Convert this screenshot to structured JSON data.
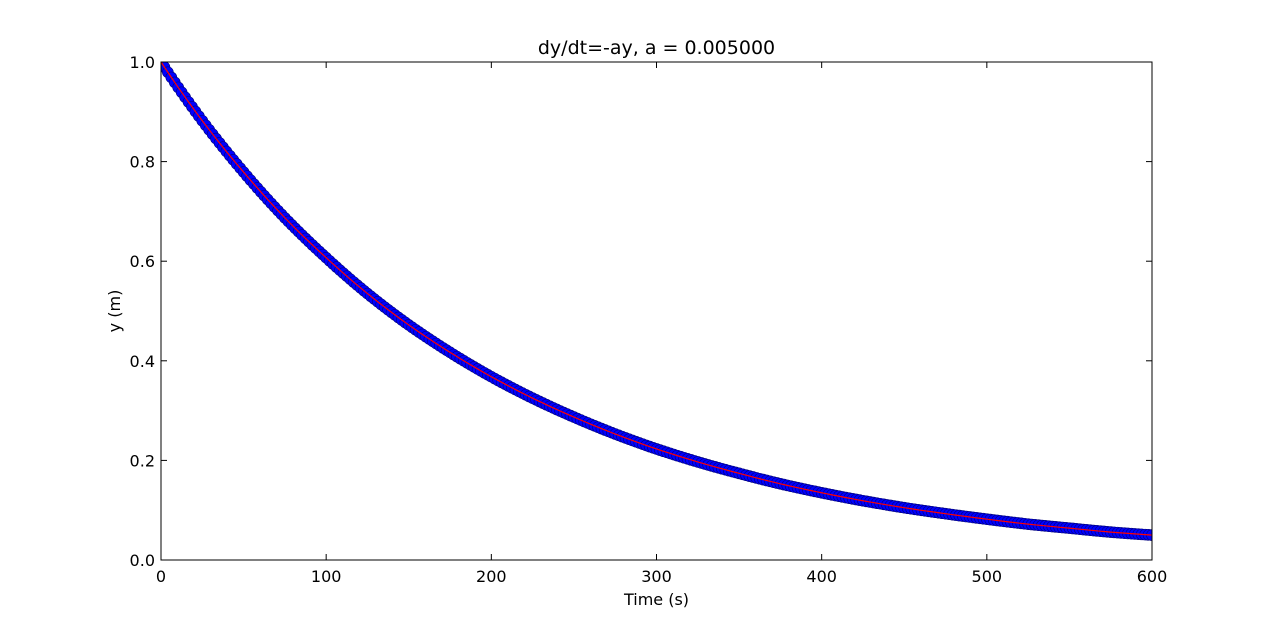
{
  "chart_data": {
    "type": "line",
    "title": "dy/dt=-ay, a = 0.005000",
    "xlabel": "Time (s)",
    "ylabel": "y (m)",
    "xlim": [
      0,
      600
    ],
    "ylim": [
      0.0,
      1.0
    ],
    "xticks": [
      0,
      100,
      200,
      300,
      400,
      500,
      600
    ],
    "xtick_labels": [
      "0",
      "100",
      "200",
      "300",
      "400",
      "500",
      "600"
    ],
    "yticks": [
      0.0,
      0.2,
      0.4,
      0.6,
      0.8,
      1.0
    ],
    "ytick_labels": [
      "0.0",
      "0.2",
      "0.4",
      "0.6",
      "0.8",
      "1.0"
    ],
    "grid": false,
    "colors": {
      "markers": "#0000ff",
      "line": "#ff0000",
      "axes": "#000000"
    },
    "series": [
      {
        "style": "markers",
        "color": "#0000ff",
        "x": [
          0,
          25,
          50,
          75,
          100,
          125,
          150,
          175,
          200,
          225,
          250,
          275,
          300,
          325,
          350,
          375,
          400,
          425,
          450,
          475,
          500,
          525,
          550,
          575,
          600
        ],
        "y": [
          1.0,
          0.882,
          0.779,
          0.687,
          0.607,
          0.535,
          0.472,
          0.417,
          0.368,
          0.325,
          0.287,
          0.253,
          0.223,
          0.197,
          0.174,
          0.153,
          0.135,
          0.119,
          0.105,
          0.093,
          0.082,
          0.072,
          0.064,
          0.056,
          0.05
        ]
      },
      {
        "style": "line",
        "color": "#ff0000",
        "x": [
          0,
          25,
          50,
          75,
          100,
          125,
          150,
          175,
          200,
          225,
          250,
          275,
          300,
          325,
          350,
          375,
          400,
          425,
          450,
          475,
          500,
          525,
          550,
          575,
          600
        ],
        "y": [
          1.0,
          0.882,
          0.779,
          0.687,
          0.607,
          0.535,
          0.472,
          0.417,
          0.368,
          0.325,
          0.287,
          0.253,
          0.223,
          0.197,
          0.174,
          0.153,
          0.135,
          0.119,
          0.105,
          0.093,
          0.082,
          0.072,
          0.064,
          0.056,
          0.05
        ]
      }
    ]
  }
}
